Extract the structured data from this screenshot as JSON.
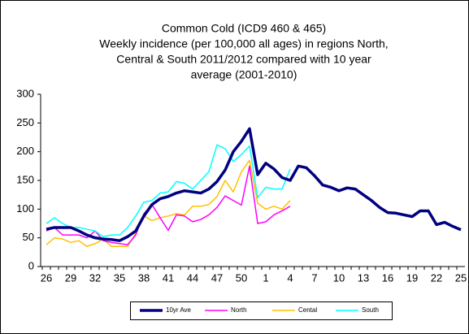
{
  "chart_data": {
    "type": "line",
    "title": "Common Cold (ICD9 460 & 465)",
    "subtitle": [
      "Weekly incidence (per 100,000 all ages) in regions North,",
      "Central & South 2011/2012 compared with 10 year",
      "average (2001-2010)"
    ],
    "categories": [
      "26",
      null,
      null,
      "29",
      null,
      null,
      "32",
      null,
      null,
      "35",
      null,
      null,
      "38",
      null,
      null,
      "41",
      null,
      null,
      "44",
      null,
      null,
      "47",
      null,
      null,
      "50",
      null,
      null,
      "1",
      null,
      null,
      "4",
      null,
      null,
      "7",
      null,
      null,
      "10",
      null,
      null,
      "13",
      null,
      null,
      "16",
      null,
      null,
      "19",
      null,
      null,
      "22",
      null,
      null,
      "25"
    ],
    "series": [
      {
        "name": "10yr Ave",
        "color": "#000080",
        "width": 3.5,
        "values": [
          65,
          68,
          68,
          68,
          62,
          55,
          50,
          48,
          47,
          45,
          52,
          62,
          88,
          108,
          118,
          122,
          128,
          132,
          130,
          128,
          135,
          148,
          168,
          200,
          218,
          240,
          160,
          180,
          170,
          155,
          150,
          175,
          172,
          158,
          142,
          138,
          132,
          137,
          135,
          125,
          115,
          103,
          94,
          93,
          90,
          87,
          97,
          97,
          73,
          77,
          70,
          64
        ]
      },
      {
        "name": "North",
        "color": "#ff00ff",
        "width": 1.5,
        "values": [
          62,
          68,
          55,
          55,
          55,
          50,
          62,
          45,
          42,
          40,
          38,
          55,
          92,
          108,
          85,
          63,
          90,
          88,
          78,
          82,
          90,
          103,
          123,
          115,
          107,
          175,
          75,
          78,
          90,
          97,
          105,
          null,
          null,
          null,
          null,
          null,
          null,
          null,
          null,
          null,
          null,
          null,
          null,
          null,
          null,
          null,
          null,
          null,
          null,
          null,
          null,
          null
        ]
      },
      {
        "name": "Cental",
        "color": "#ffc000",
        "width": 1.5,
        "values": [
          38,
          50,
          48,
          42,
          45,
          35,
          40,
          48,
          35,
          35,
          35,
          58,
          88,
          80,
          85,
          88,
          92,
          90,
          105,
          105,
          108,
          122,
          150,
          130,
          165,
          185,
          110,
          100,
          105,
          100,
          115,
          null,
          null,
          null,
          null,
          null,
          null,
          null,
          null,
          null,
          null,
          null,
          null,
          null,
          null,
          null,
          null,
          null,
          null,
          null,
          null,
          null
        ]
      },
      {
        "name": "South",
        "color": "#00ffff",
        "width": 1.5,
        "values": [
          75,
          85,
          75,
          68,
          68,
          65,
          62,
          52,
          55,
          55,
          68,
          88,
          112,
          115,
          128,
          130,
          148,
          145,
          135,
          150,
          165,
          212,
          205,
          183,
          195,
          210,
          120,
          138,
          135,
          135,
          170,
          null,
          null,
          null,
          null,
          null,
          null,
          null,
          null,
          null,
          null,
          null,
          null,
          null,
          null,
          null,
          null,
          null,
          null,
          null,
          null,
          null
        ]
      }
    ],
    "ylim": [
      0,
      300
    ],
    "yticks": [
      0,
      50,
      100,
      150,
      200,
      250,
      300
    ],
    "legend": "bottom"
  }
}
